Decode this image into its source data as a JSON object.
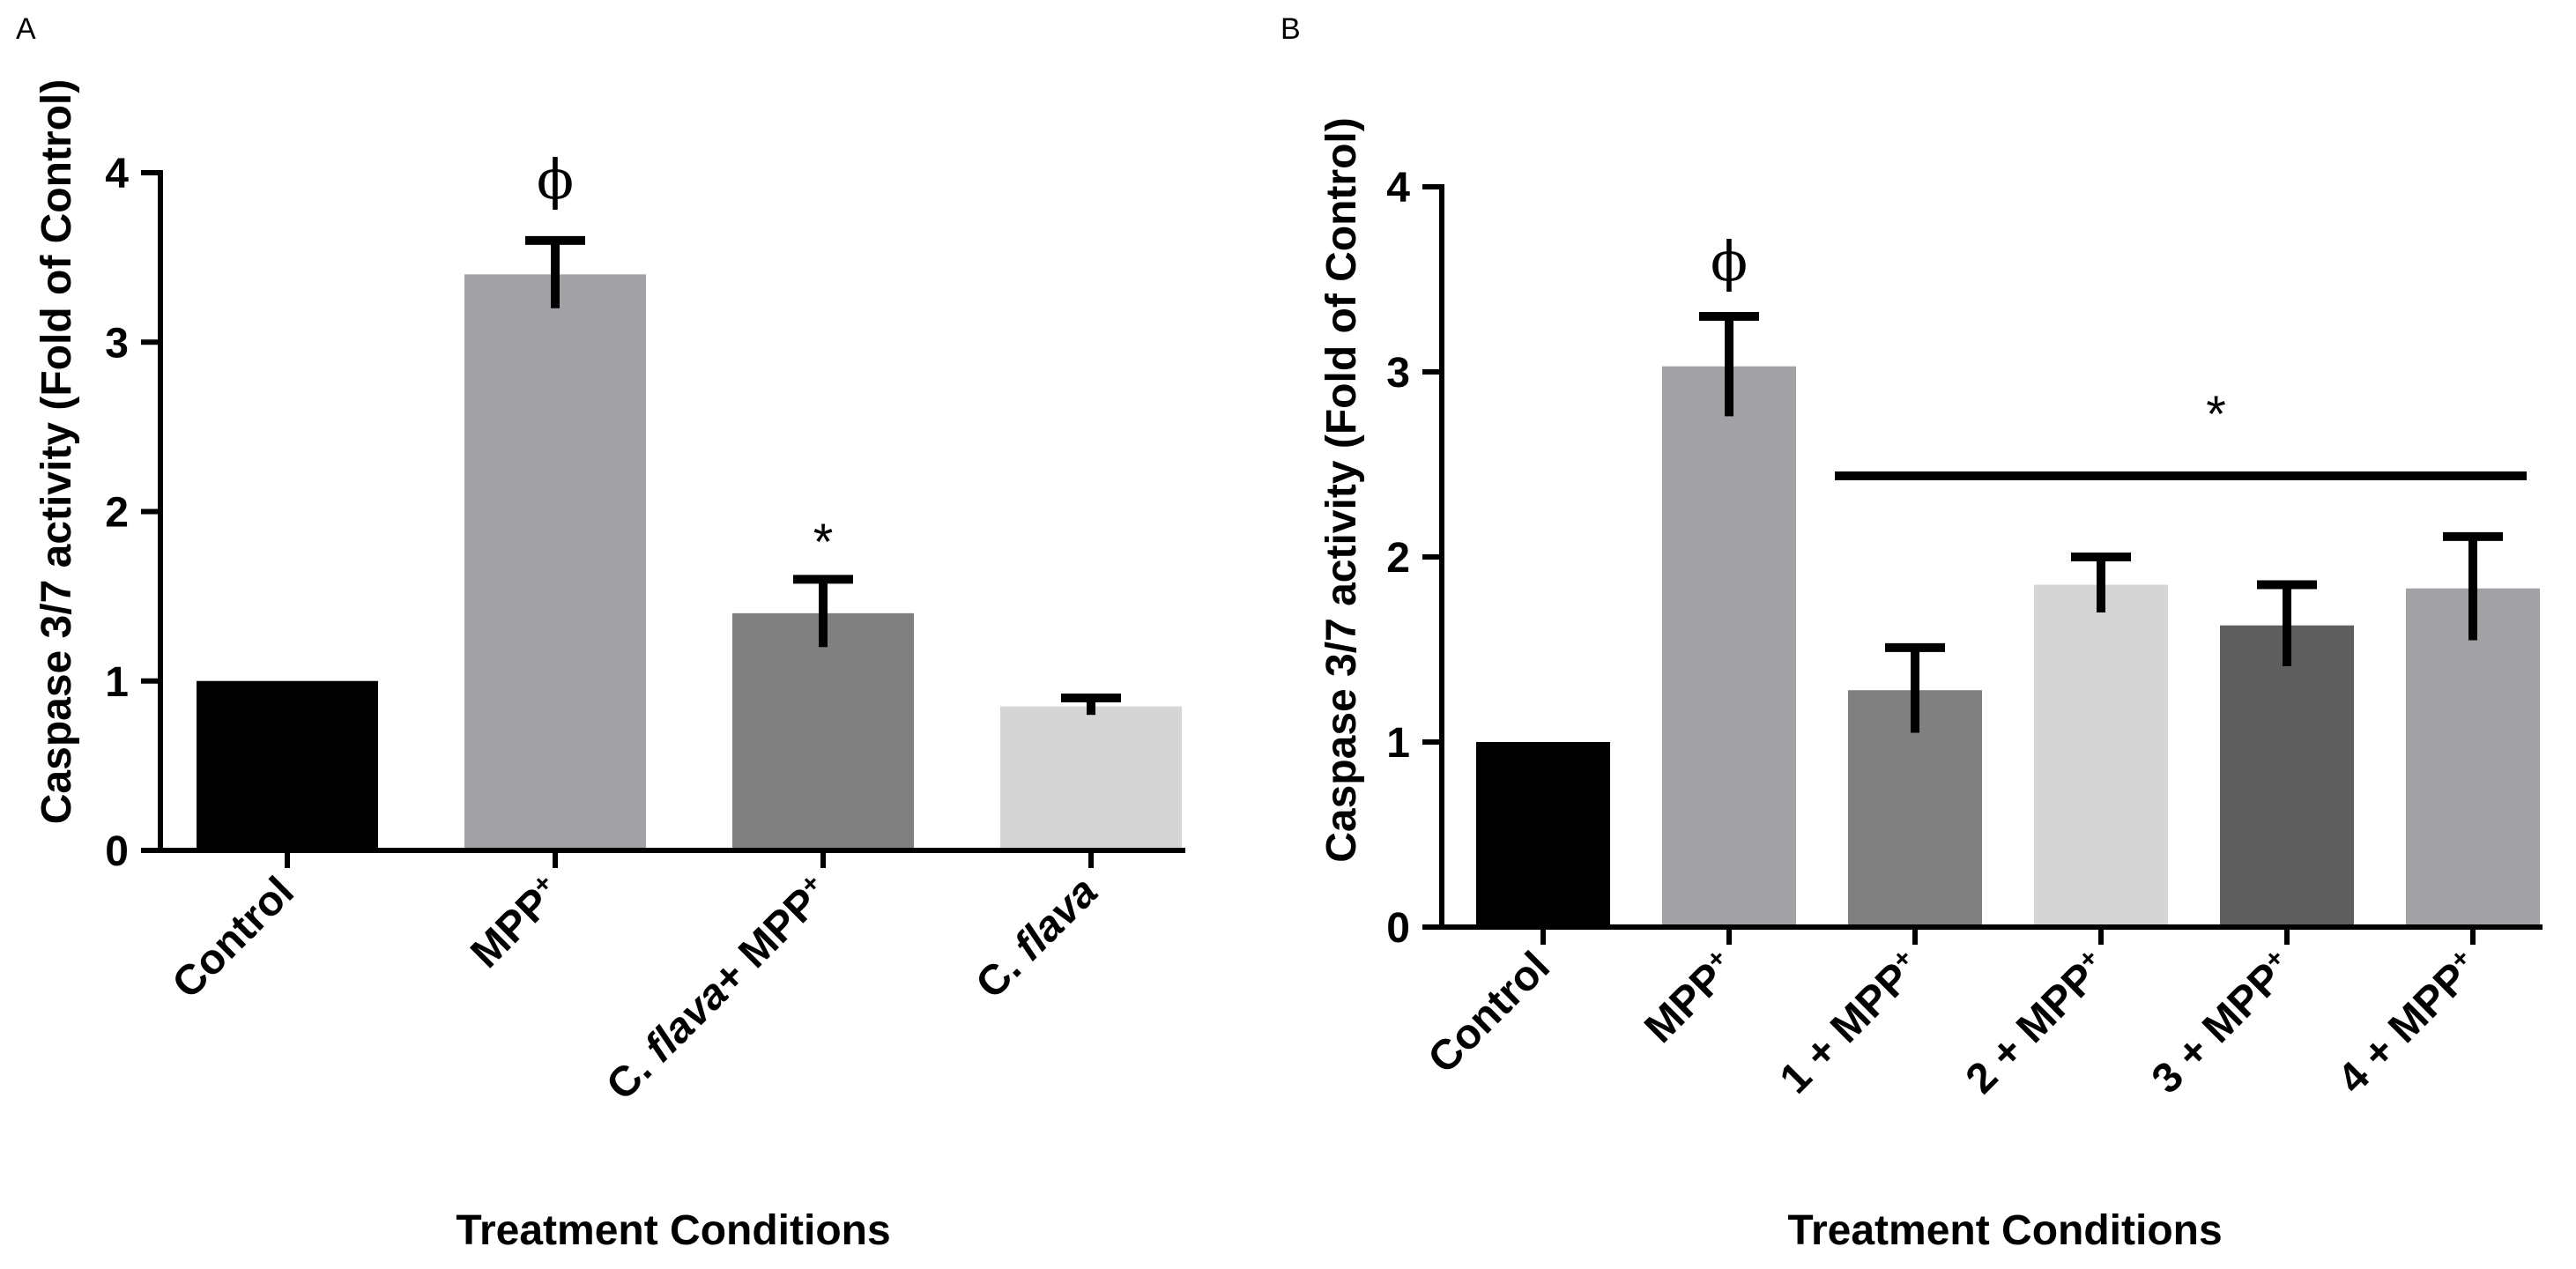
{
  "chart_data": [
    {
      "type": "bar",
      "panel_label": "A",
      "title": "",
      "xlabel": "Treatment Conditions",
      "ylabel": "Caspase 3/7 activity (Fold of Control)",
      "ylim": [
        0,
        4
      ],
      "yticks": [
        "0",
        "1",
        "2",
        "3",
        "4"
      ],
      "categories": [
        {
          "parts": [
            {
              "t": "Control"
            }
          ]
        },
        {
          "parts": [
            {
              "t": "MPP"
            },
            {
              "t": "+",
              "sup": true
            }
          ]
        },
        {
          "parts": [
            {
              "t": "C. "
            },
            {
              "t": "flava",
              "italic": true
            },
            {
              "t": "+ MPP"
            },
            {
              "t": "+",
              "sup": true
            }
          ]
        },
        {
          "parts": [
            {
              "t": "C. "
            },
            {
              "t": "flava",
              "italic": true
            }
          ]
        }
      ],
      "values": [
        1.0,
        3.4,
        1.4,
        0.85
      ],
      "errors": [
        0,
        0.2,
        0.2,
        0.05
      ],
      "colors": [
        "#000000",
        "#a2a2a6",
        "#808080",
        "#d5d5d5"
      ],
      "annotations": [
        {
          "type": "marker",
          "category_index": 1,
          "text": "ϕ"
        },
        {
          "type": "marker",
          "category_index": 2,
          "text": "*"
        }
      ]
    },
    {
      "type": "bar",
      "panel_label": "B",
      "title": "",
      "xlabel": "Treatment Conditions",
      "ylabel": "Caspase 3/7 activity (Fold of Control)",
      "ylim": [
        0,
        4
      ],
      "yticks": [
        "0",
        "1",
        "2",
        "3",
        "4"
      ],
      "categories": [
        {
          "parts": [
            {
              "t": "Control"
            }
          ]
        },
        {
          "parts": [
            {
              "t": "MPP"
            },
            {
              "t": "+",
              "sup": true
            }
          ]
        },
        {
          "parts": [
            {
              "t": "1 + MPP"
            },
            {
              "t": "+",
              "sup": true
            }
          ]
        },
        {
          "parts": [
            {
              "t": "2 + MPP"
            },
            {
              "t": "+",
              "sup": true
            }
          ]
        },
        {
          "parts": [
            {
              "t": "3 + MPP"
            },
            {
              "t": "+",
              "sup": true
            }
          ]
        },
        {
          "parts": [
            {
              "t": "4 + MPP"
            },
            {
              "t": "+",
              "sup": true
            }
          ]
        }
      ],
      "values": [
        1.0,
        3.03,
        1.28,
        1.85,
        1.63,
        1.83
      ],
      "errors": [
        0,
        0.27,
        0.23,
        0.15,
        0.22,
        0.28
      ],
      "colors": [
        "#000000",
        "#a2a2a6",
        "#808080",
        "#d5d5d5",
        "#5f5f5f",
        "#a2a2a6"
      ],
      "annotations": [
        {
          "type": "marker",
          "category_index": 1,
          "text": "ϕ"
        },
        {
          "type": "group",
          "from_index": 2,
          "to_index": 5,
          "text": "*"
        }
      ]
    }
  ]
}
